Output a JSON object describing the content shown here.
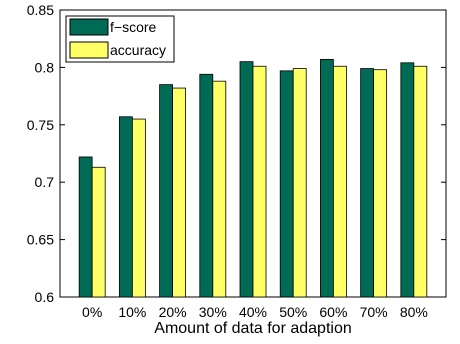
{
  "chart_data": {
    "type": "bar",
    "title": "",
    "xlabel": "Amount of data for adaption",
    "ylabel": "",
    "categories": [
      "0%",
      "10%",
      "20%",
      "30%",
      "40%",
      "50%",
      "60%",
      "70%",
      "80%"
    ],
    "series": [
      {
        "name": "f−score",
        "color": "#006B54",
        "values": [
          0.722,
          0.757,
          0.785,
          0.794,
          0.805,
          0.797,
          0.807,
          0.799,
          0.804
        ]
      },
      {
        "name": "accuracy",
        "color": "#FFFF66",
        "values": [
          0.713,
          0.755,
          0.782,
          0.788,
          0.801,
          0.799,
          0.801,
          0.798,
          0.801
        ]
      }
    ],
    "ylim": [
      0.6,
      0.85
    ],
    "yticks": [
      "0.6",
      "0.65",
      "0.7",
      "0.75",
      "0.8",
      "0.85"
    ],
    "grid": false,
    "legend_position": "top-left"
  }
}
